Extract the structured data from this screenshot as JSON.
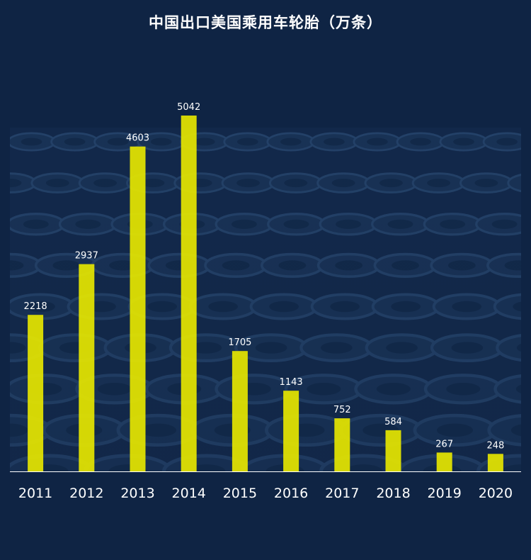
{
  "chart_data": {
    "type": "bar",
    "title": "中国出口美国乘用车轮胎（万条）",
    "categories": [
      "2011",
      "2012",
      "2013",
      "2014",
      "2015",
      "2016",
      "2017",
      "2018",
      "2019",
      "2020"
    ],
    "values": [
      2218,
      2937,
      4603,
      5042,
      1705,
      1143,
      752,
      584,
      267,
      248
    ],
    "xlabel": "",
    "ylabel": "",
    "ylim": [
      0,
      5042
    ],
    "grid": false,
    "data_labels": true,
    "colors": {
      "background": "#0f2444",
      "bar": "#e6e600",
      "bar_highlight": "#ffff00",
      "text": "#ffffff",
      "axis": "#ffffff",
      "tire": "#223f63"
    }
  }
}
